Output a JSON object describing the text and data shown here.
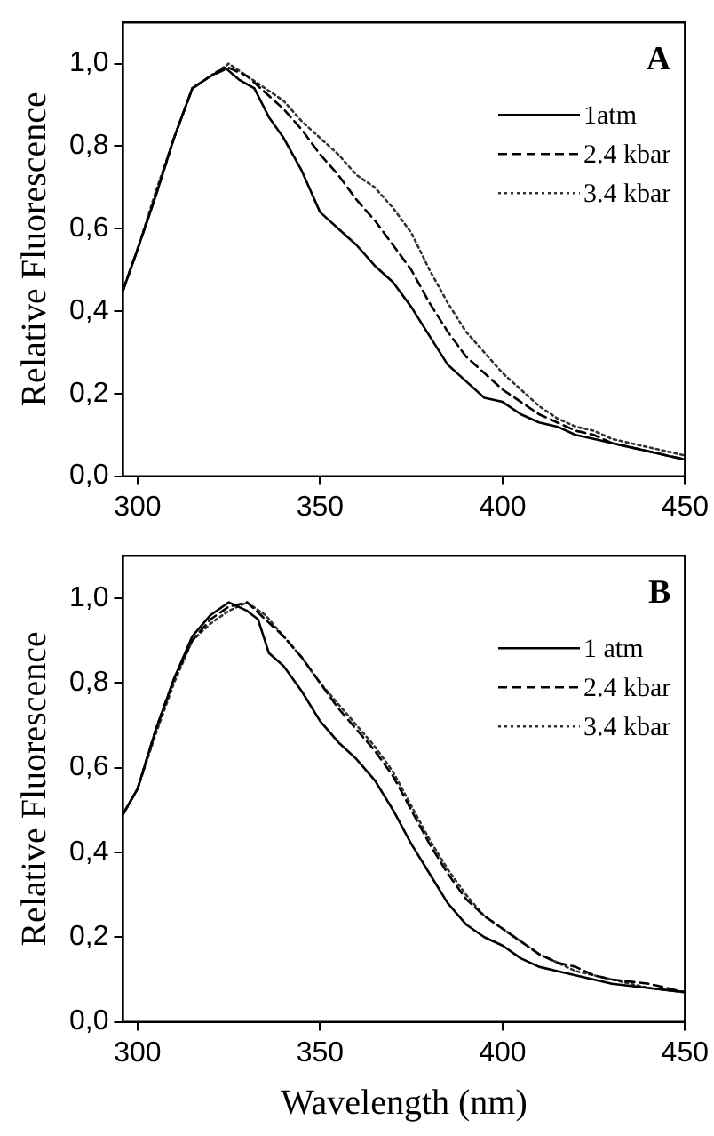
{
  "chart_data": [
    {
      "type": "line",
      "ylabel": "Relative Fluorescence",
      "annotations": [
        "A"
      ],
      "xlim": [
        296,
        450
      ],
      "xticks": [
        300,
        350,
        400,
        450
      ],
      "ylim": [
        0,
        1.1
      ],
      "yticks": [
        {
          "value": 0,
          "label": "0,0"
        },
        {
          "value": 0.2,
          "label": "0,2"
        },
        {
          "value": 0.4,
          "label": "0,4"
        },
        {
          "value": 0.6,
          "label": "0,6"
        },
        {
          "value": 0.8,
          "label": "0,8"
        },
        {
          "value": 1,
          "label": "1,0"
        }
      ],
      "grid": false,
      "legend": "top right",
      "marker": "none",
      "series": [
        {
          "name": "1atm",
          "color": "#000000",
          "line_style": "solid",
          "x": [
            296,
            300,
            305,
            310,
            315,
            320,
            324,
            328,
            332,
            336,
            340,
            345,
            350,
            355,
            360,
            365,
            370,
            375,
            380,
            385,
            390,
            395,
            400,
            405,
            410,
            415,
            420,
            425,
            430,
            435,
            440,
            445,
            450
          ],
          "values": [
            0.45,
            0.55,
            0.68,
            0.82,
            0.94,
            0.97,
            0.99,
            0.96,
            0.94,
            0.87,
            0.82,
            0.74,
            0.64,
            0.6,
            0.56,
            0.51,
            0.47,
            0.41,
            0.34,
            0.27,
            0.23,
            0.19,
            0.18,
            0.15,
            0.13,
            0.12,
            0.1,
            0.09,
            0.08,
            0.07,
            0.06,
            0.05,
            0.04
          ]
        },
        {
          "name": "2.4 kbar",
          "color": "#000000",
          "line_style": "dashed",
          "x": [
            296,
            300,
            305,
            310,
            315,
            320,
            325,
            330,
            335,
            340,
            345,
            350,
            355,
            360,
            365,
            370,
            375,
            380,
            385,
            390,
            395,
            400,
            405,
            410,
            415,
            420,
            425,
            430,
            440,
            450
          ],
          "values": [
            0.45,
            0.55,
            0.68,
            0.82,
            0.94,
            0.97,
            0.99,
            0.97,
            0.93,
            0.89,
            0.84,
            0.78,
            0.73,
            0.67,
            0.62,
            0.56,
            0.5,
            0.42,
            0.35,
            0.29,
            0.25,
            0.21,
            0.18,
            0.15,
            0.13,
            0.11,
            0.1,
            0.08,
            0.06,
            0.04
          ]
        },
        {
          "name": "3.4 kbar",
          "color": "#333333",
          "line_style": "dotted",
          "x": [
            296,
            300,
            305,
            310,
            315,
            320,
            325,
            330,
            335,
            340,
            345,
            350,
            355,
            360,
            365,
            370,
            375,
            380,
            385,
            390,
            395,
            400,
            405,
            410,
            415,
            420,
            425,
            430,
            440,
            450
          ],
          "values": [
            0.45,
            0.55,
            0.69,
            0.82,
            0.94,
            0.97,
            1.0,
            0.97,
            0.94,
            0.91,
            0.86,
            0.82,
            0.78,
            0.73,
            0.7,
            0.65,
            0.59,
            0.5,
            0.42,
            0.35,
            0.3,
            0.25,
            0.21,
            0.17,
            0.14,
            0.12,
            0.11,
            0.09,
            0.07,
            0.05
          ]
        }
      ]
    },
    {
      "type": "line",
      "xlabel": "Wavelength (nm)",
      "ylabel": "Relative Fluorescence",
      "annotations": [
        "B"
      ],
      "xlim": [
        296,
        450
      ],
      "xticks": [
        300,
        350,
        400,
        450
      ],
      "ylim": [
        0,
        1.1
      ],
      "yticks": [
        {
          "value": 0,
          "label": "0,0"
        },
        {
          "value": 0.2,
          "label": "0,2"
        },
        {
          "value": 0.4,
          "label": "0,4"
        },
        {
          "value": 0.6,
          "label": "0,6"
        },
        {
          "value": 0.8,
          "label": "0,8"
        },
        {
          "value": 1,
          "label": "1,0"
        }
      ],
      "grid": false,
      "legend": "top right",
      "marker": "none",
      "series": [
        {
          "name": "1 atm",
          "color": "#000000",
          "line_style": "solid",
          "x": [
            296,
            300,
            305,
            310,
            315,
            320,
            325,
            330,
            333,
            336,
            340,
            345,
            350,
            355,
            360,
            365,
            370,
            375,
            380,
            385,
            390,
            395,
            400,
            405,
            410,
            415,
            420,
            425,
            430,
            440,
            450
          ],
          "values": [
            0.49,
            0.55,
            0.69,
            0.81,
            0.91,
            0.96,
            0.99,
            0.97,
            0.95,
            0.87,
            0.84,
            0.78,
            0.71,
            0.66,
            0.62,
            0.57,
            0.5,
            0.42,
            0.35,
            0.28,
            0.23,
            0.2,
            0.18,
            0.15,
            0.13,
            0.12,
            0.11,
            0.1,
            0.09,
            0.08,
            0.07
          ]
        },
        {
          "name": "2.4 kbar",
          "color": "#000000",
          "line_style": "dashed",
          "x": [
            296,
            300,
            305,
            310,
            315,
            320,
            325,
            330,
            335,
            340,
            345,
            350,
            355,
            360,
            365,
            370,
            375,
            380,
            385,
            390,
            395,
            400,
            405,
            410,
            415,
            420,
            425,
            430,
            440,
            450
          ],
          "values": [
            0.49,
            0.55,
            0.69,
            0.81,
            0.9,
            0.95,
            0.98,
            0.99,
            0.95,
            0.91,
            0.86,
            0.8,
            0.74,
            0.69,
            0.64,
            0.58,
            0.5,
            0.42,
            0.35,
            0.29,
            0.25,
            0.22,
            0.19,
            0.16,
            0.14,
            0.13,
            0.11,
            0.1,
            0.09,
            0.07
          ]
        },
        {
          "name": "3.4 kbar",
          "color": "#333333",
          "line_style": "dotted",
          "x": [
            296,
            300,
            305,
            310,
            315,
            320,
            325,
            330,
            335,
            340,
            345,
            350,
            355,
            360,
            365,
            370,
            375,
            380,
            385,
            390,
            395,
            400,
            405,
            410,
            415,
            420,
            425,
            430,
            440,
            450
          ],
          "values": [
            0.49,
            0.55,
            0.68,
            0.8,
            0.9,
            0.94,
            0.97,
            0.99,
            0.96,
            0.91,
            0.86,
            0.8,
            0.75,
            0.7,
            0.65,
            0.59,
            0.51,
            0.43,
            0.36,
            0.3,
            0.25,
            0.22,
            0.19,
            0.16,
            0.14,
            0.12,
            0.11,
            0.1,
            0.08,
            0.07
          ]
        }
      ]
    }
  ]
}
